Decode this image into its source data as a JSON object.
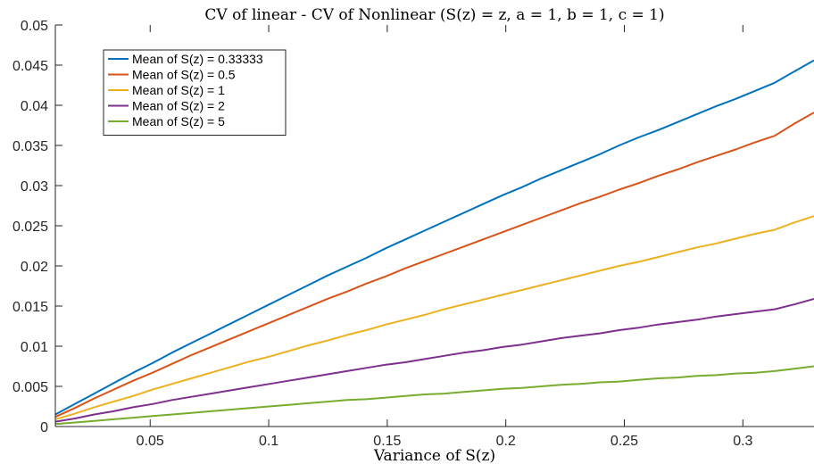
{
  "chart_data": {
    "type": "line",
    "title": "CV of linear - CV of Nonlinear (S(z) = z, a = 1, b = 1, c = 1)",
    "xlabel": "Variance of S(z)",
    "ylabel": "",
    "xlim": [
      0.01,
      0.33
    ],
    "ylim": [
      0,
      0.05
    ],
    "x_ticks": [
      0.05,
      0.1,
      0.15,
      0.2,
      0.25,
      0.3
    ],
    "x_tick_labels": [
      "0.05",
      "0.1",
      "0.15",
      "0.2",
      "0.25",
      "0.3"
    ],
    "y_ticks": [
      0,
      0.005,
      0.01,
      0.015,
      0.02,
      0.025,
      0.03,
      0.035,
      0.04,
      0.045,
      0.05
    ],
    "y_tick_labels": [
      "0",
      "0.005",
      "0.01",
      "0.015",
      "0.02",
      "0.025",
      "0.03",
      "0.035",
      "0.04",
      "0.045",
      "0.05"
    ],
    "grid": false,
    "legend_position": "top-left",
    "x": [
      0.01,
      0.0182,
      0.0264,
      0.0346,
      0.0428,
      0.051,
      0.0592,
      0.0674,
      0.0756,
      0.0838,
      0.092,
      0.1002,
      0.1084,
      0.1166,
      0.1248,
      0.133,
      0.1412,
      0.1494,
      0.1576,
      0.1658,
      0.174,
      0.1822,
      0.1904,
      0.1986,
      0.2068,
      0.215,
      0.2232,
      0.2314,
      0.2396,
      0.2478,
      0.256,
      0.2642,
      0.2724,
      0.2806,
      0.2888,
      0.297,
      0.3052,
      0.3134,
      0.3216,
      0.33
    ],
    "series": [
      {
        "name": "Mean of S(z) = 0.33333",
        "color": "#0072BD",
        "values": [
          0.0015,
          0.0028,
          0.0041,
          0.0054,
          0.0067,
          0.0079,
          0.0092,
          0.0104,
          0.0116,
          0.0128,
          0.014,
          0.0152,
          0.0164,
          0.0176,
          0.0188,
          0.0199,
          0.021,
          0.0222,
          0.0233,
          0.0244,
          0.0255,
          0.0266,
          0.0277,
          0.0288,
          0.0298,
          0.0309,
          0.0319,
          0.0329,
          0.0339,
          0.035,
          0.036,
          0.0369,
          0.0379,
          0.0389,
          0.0399,
          0.0408,
          0.0418,
          0.0428,
          0.0442,
          0.0456
        ]
      },
      {
        "name": "Mean of S(z) = 0.5",
        "color": "#D95319",
        "values": [
          0.0012,
          0.0023,
          0.0035,
          0.0046,
          0.0057,
          0.0067,
          0.0078,
          0.0089,
          0.0099,
          0.0109,
          0.0119,
          0.0129,
          0.0139,
          0.0149,
          0.0159,
          0.0168,
          0.0178,
          0.0187,
          0.0197,
          0.0206,
          0.0215,
          0.0224,
          0.0233,
          0.0242,
          0.0251,
          0.026,
          0.0269,
          0.0278,
          0.0286,
          0.0295,
          0.0303,
          0.0312,
          0.032,
          0.0329,
          0.0337,
          0.0345,
          0.0354,
          0.0362,
          0.0377,
          0.0391
        ]
      },
      {
        "name": "Mean of S(z) = 1",
        "color": "#EDB120",
        "values": [
          0.0009,
          0.0016,
          0.0024,
          0.0031,
          0.0038,
          0.0046,
          0.0053,
          0.006,
          0.0067,
          0.0074,
          0.0081,
          0.0087,
          0.0094,
          0.0101,
          0.0107,
          0.0114,
          0.012,
          0.0127,
          0.0133,
          0.0139,
          0.0146,
          0.0152,
          0.0158,
          0.0164,
          0.017,
          0.0176,
          0.0182,
          0.0188,
          0.0194,
          0.02,
          0.0205,
          0.0211,
          0.0217,
          0.0223,
          0.0228,
          0.0234,
          0.024,
          0.0245,
          0.0254,
          0.0262
        ]
      },
      {
        "name": "Mean of S(z) = 2",
        "color": "#7E2F8E",
        "values": [
          0.0006,
          0.001,
          0.0015,
          0.0019,
          0.0024,
          0.0028,
          0.0033,
          0.0037,
          0.0041,
          0.0045,
          0.0049,
          0.0053,
          0.0057,
          0.0061,
          0.0065,
          0.0069,
          0.0073,
          0.0077,
          0.008,
          0.0084,
          0.0088,
          0.0092,
          0.0095,
          0.0099,
          0.0102,
          0.0106,
          0.011,
          0.0113,
          0.0116,
          0.012,
          0.0123,
          0.0127,
          0.013,
          0.0133,
          0.0137,
          0.014,
          0.0143,
          0.0146,
          0.0152,
          0.0159
        ]
      },
      {
        "name": "Mean of S(z) = 5",
        "color": "#77AC30",
        "values": [
          0.0003,
          0.0005,
          0.0007,
          0.0009,
          0.0011,
          0.0013,
          0.0015,
          0.0017,
          0.0019,
          0.0021,
          0.0023,
          0.0025,
          0.0027,
          0.0029,
          0.0031,
          0.0033,
          0.0034,
          0.0036,
          0.0038,
          0.004,
          0.0041,
          0.0043,
          0.0045,
          0.0047,
          0.0048,
          0.005,
          0.0052,
          0.0053,
          0.0055,
          0.0056,
          0.0058,
          0.006,
          0.0061,
          0.0063,
          0.0064,
          0.0066,
          0.0067,
          0.0069,
          0.0072,
          0.0075
        ]
      }
    ]
  }
}
